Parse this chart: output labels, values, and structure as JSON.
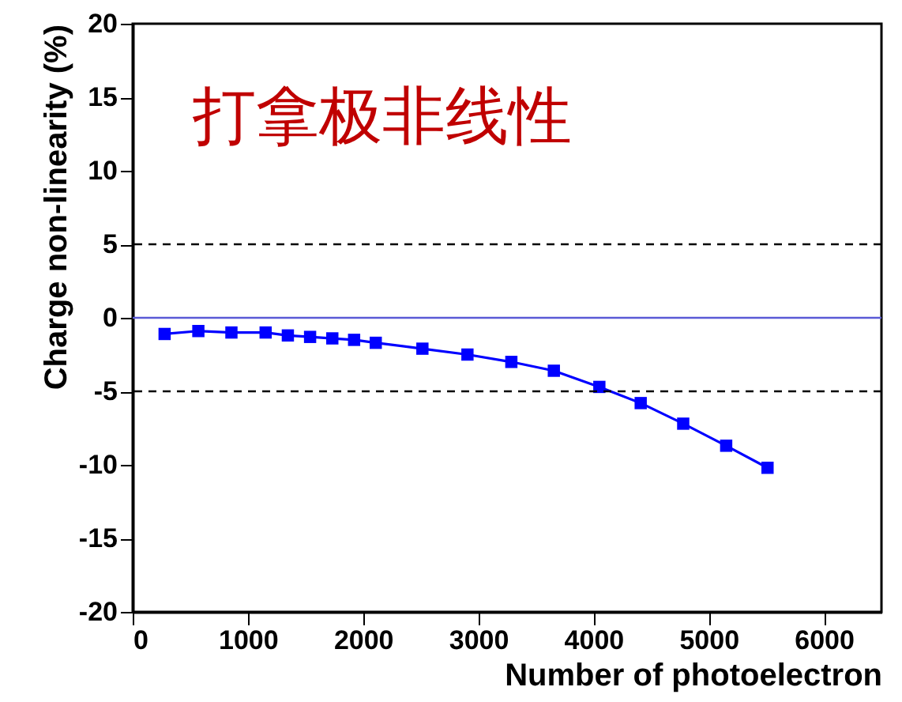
{
  "chart_data": {
    "type": "line",
    "xlabel": "Number of photoelectron",
    "ylabel": "Charge non-linearity (%)",
    "annotations": [
      "打拿极非线性"
    ],
    "x": [
      277,
      570,
      857,
      1154,
      1347,
      1540,
      1733,
      1922,
      2110,
      2515,
      2906,
      3287,
      3656,
      4051,
      4410,
      4779,
      5152,
      5511
    ],
    "series": [
      {
        "color": "#0000ff",
        "values": [
          -1.1,
          -0.9,
          -1.0,
          -1.0,
          -1.2,
          -1.3,
          -1.4,
          -1.5,
          -1.7,
          -2.1,
          -2.5,
          -3.0,
          -3.6,
          -4.7,
          -5.8,
          -7.2,
          -8.7,
          -10.2
        ]
      }
    ],
    "xlim": [
      0,
      6500
    ],
    "xticks": [
      0,
      1000,
      2000,
      3000,
      4000,
      5000,
      6000
    ],
    "ylim": [
      -20,
      20
    ],
    "yticks": [
      -20,
      -15,
      -10,
      -5,
      0,
      5,
      10,
      15,
      20
    ],
    "ref_lines": [
      {
        "axis": "y",
        "value": 5,
        "color": "#000000",
        "line_style": "dashed"
      },
      {
        "axis": "y",
        "value": -5,
        "color": "#000000",
        "line_style": "dashed"
      },
      {
        "axis": "y",
        "value": 0,
        "color": "#5a5ad6",
        "line_style": "solid"
      }
    ],
    "marker": "square",
    "line_style": "solid",
    "grid": false
  }
}
